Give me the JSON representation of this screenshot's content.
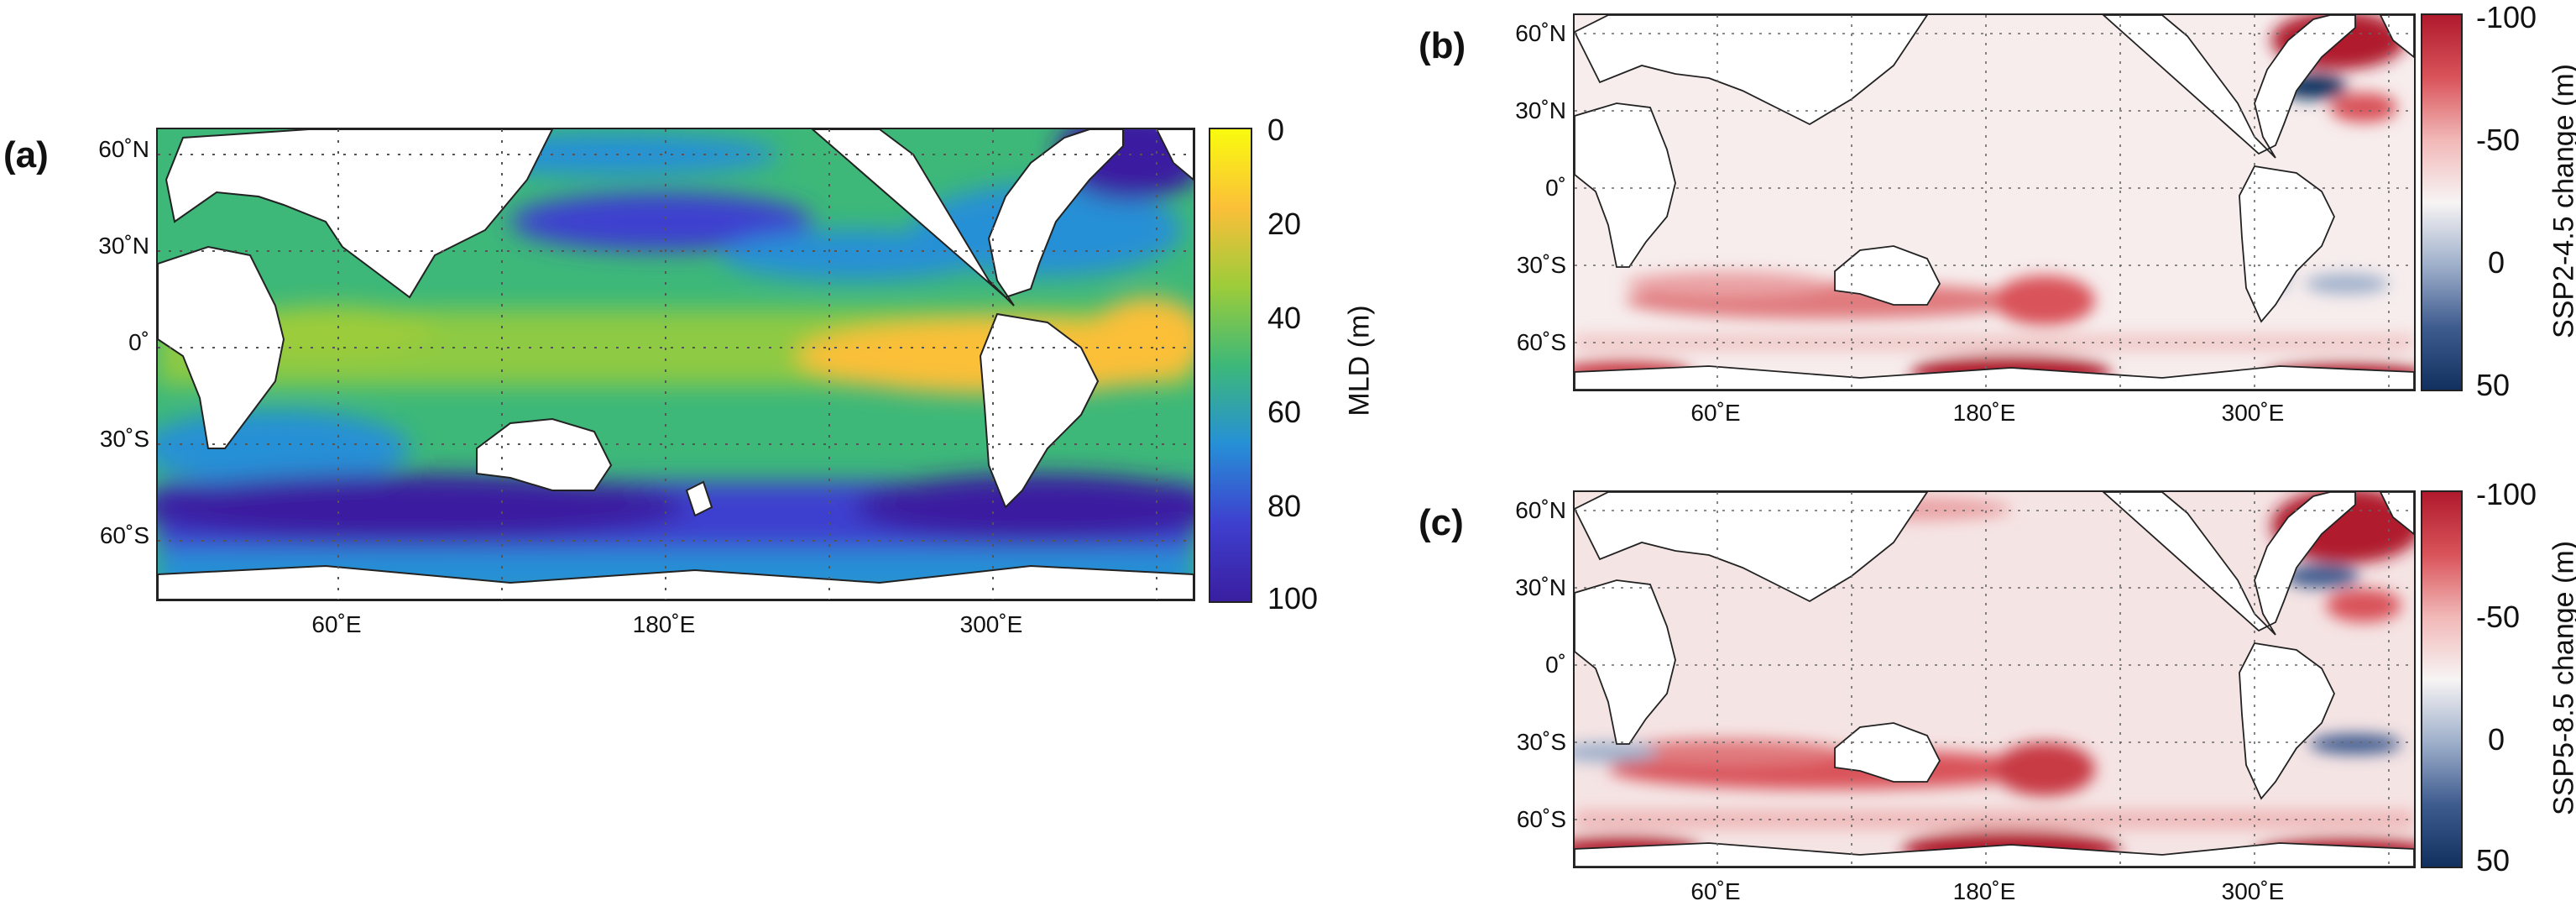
{
  "panels": [
    {
      "id": "a",
      "letter": "(a)",
      "lat_labels": [
        "60˚N",
        "30˚N",
        "0˚",
        "30˚S",
        "60˚S"
      ],
      "lon_labels": [
        "60˚E",
        "180˚E",
        "300˚E"
      ],
      "colorbar": {
        "label": "MLD (m)",
        "ticks": [
          "0",
          "20",
          "40",
          "60",
          "80",
          "100"
        ],
        "colors": [
          "#f9fb0e",
          "#fbbf39",
          "#9ccc3a",
          "#3db879",
          "#2690d6",
          "#3e40cf",
          "#3a1ea0"
        ]
      }
    },
    {
      "id": "b",
      "letter": "(b)",
      "lat_labels": [
        "60˚N",
        "30˚N",
        "0˚",
        "30˚S",
        "60˚S"
      ],
      "lon_labels": [
        "60˚E",
        "180˚E",
        "300˚E"
      ],
      "colorbar": {
        "label": "SSP2-4.5 change (m)",
        "ticks": [
          "-100",
          "-50",
          "0",
          "50"
        ],
        "colors": [
          "#b01a2d",
          "#d9535a",
          "#f1b8b7",
          "#f7f4f4",
          "#9fb0cb",
          "#3f5c8f",
          "#11305f"
        ]
      }
    },
    {
      "id": "c",
      "letter": "(c)",
      "lat_labels": [
        "60˚N",
        "30˚N",
        "0˚",
        "30˚S",
        "60˚S"
      ],
      "lon_labels": [
        "60˚E",
        "180˚E",
        "300˚E"
      ],
      "colorbar": {
        "label": "SSP5-8.5 change (m)",
        "ticks": [
          "-100",
          "-50",
          "0",
          "50"
        ],
        "colors": [
          "#b01a2d",
          "#d9535a",
          "#f1b8b7",
          "#f7f4f4",
          "#9fb0cb",
          "#3f5c8f",
          "#11305f"
        ]
      }
    }
  ]
}
